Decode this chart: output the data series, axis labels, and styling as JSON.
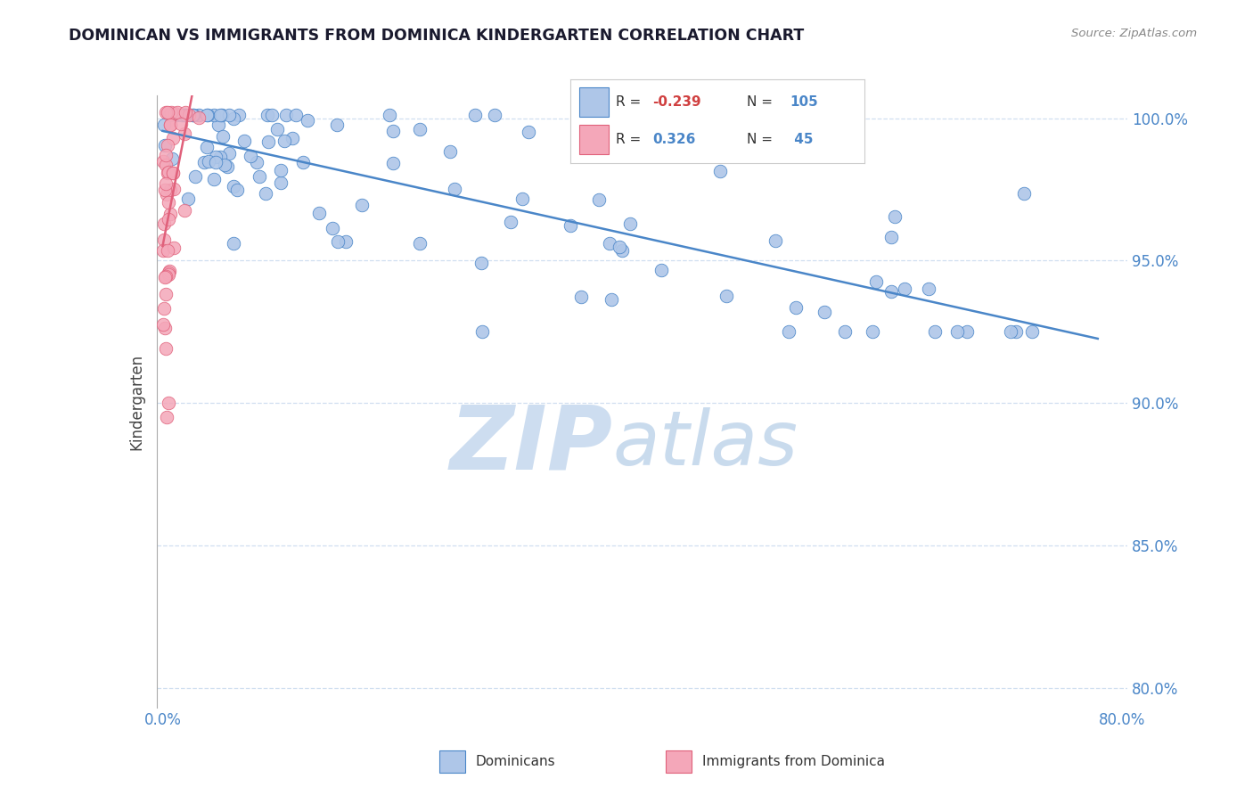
{
  "title": "DOMINICAN VS IMMIGRANTS FROM DOMINICA KINDERGARTEN CORRELATION CHART",
  "source_text": "Source: ZipAtlas.com",
  "ylabel": "Kindergarten",
  "legend_label1": "Dominicans",
  "legend_label2": "Immigrants from Dominica",
  "R1": -0.239,
  "N1": 105,
  "R2": 0.326,
  "N2": 45,
  "color1": "#aec6e8",
  "color2": "#f4a7b9",
  "line_color1": "#4a86c8",
  "line_color2": "#e0607a",
  "xlim": [
    -0.005,
    0.805
  ],
  "ylim": [
    0.793,
    1.008
  ],
  "xticks": [
    0.0,
    0.1,
    0.2,
    0.3,
    0.4,
    0.5,
    0.6,
    0.7,
    0.8
  ],
  "yticks": [
    0.8,
    0.85,
    0.9,
    0.95,
    1.0
  ],
  "xtick_labels": [
    "0.0%",
    "",
    "",
    "",
    "",
    "",
    "",
    "",
    "80.0%"
  ],
  "ytick_labels": [
    "80.0%",
    "85.0%",
    "90.0%",
    "95.0%",
    "100.0%"
  ],
  "watermark_zip": "ZIP",
  "watermark_atlas": "atlas",
  "watermark_color_zip": "#c5d8ee",
  "watermark_color_atlas": "#b8cfe8",
  "background_color": "#ffffff",
  "grid_color": "#d0dff0",
  "title_color": "#1a1a2e",
  "axis_color": "#aaaaaa"
}
